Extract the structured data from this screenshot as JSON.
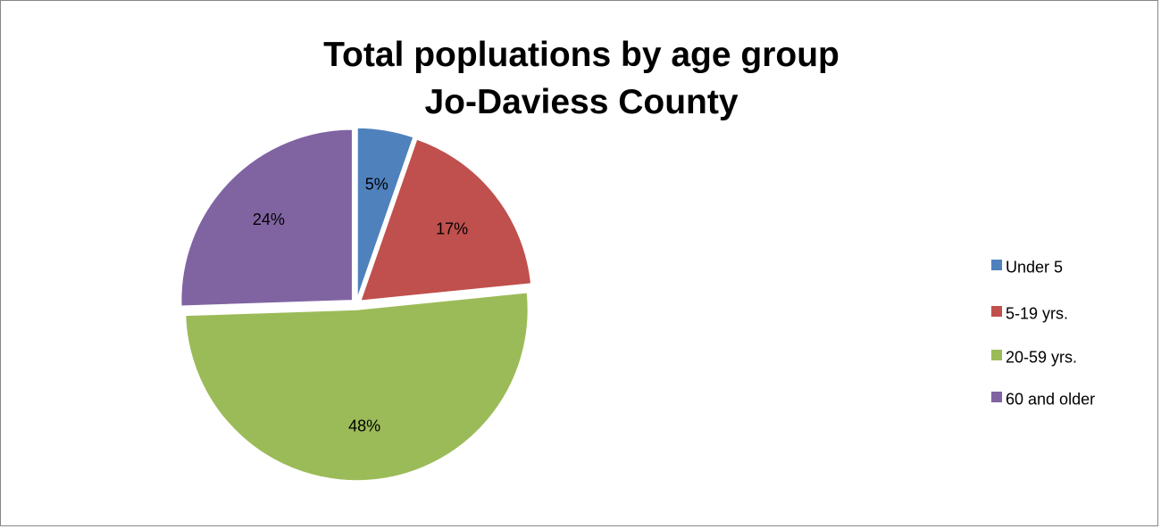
{
  "chart_data": {
    "type": "pie",
    "title_lines": [
      "Total popluations by age group",
      "Jo-Daviess County"
    ],
    "categories": [
      "Under 5",
      "5-19 yrs.",
      "20-59 yrs.",
      "60 and older"
    ],
    "values": [
      5,
      17,
      48,
      24
    ],
    "value_labels": [
      "5%",
      "17%",
      "48%",
      "24%"
    ],
    "colors": [
      "#4F81BD",
      "#C0504D",
      "#9BBB59",
      "#8064A2"
    ],
    "legend_position": "right"
  }
}
